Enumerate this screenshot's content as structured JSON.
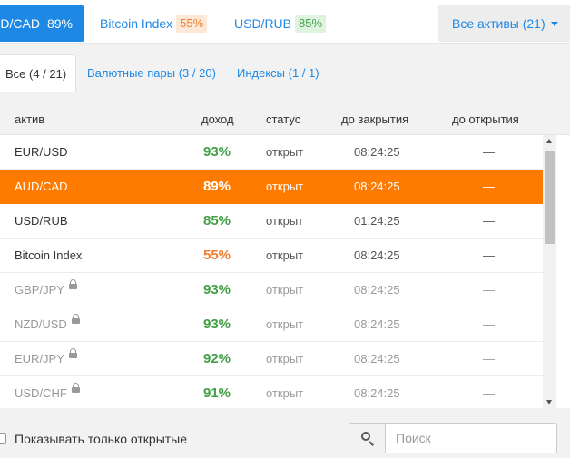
{
  "top_tabs": {
    "active": {
      "label": "AUD/CAD",
      "pct": "89%"
    },
    "items": [
      {
        "label": "Bitcoin Index",
        "pct": "55%"
      },
      {
        "label": "USD/RUB",
        "pct": "85%"
      }
    ],
    "all_assets_label": "Все активы (21)"
  },
  "filters": [
    {
      "label": "Все (4 / 21)"
    },
    {
      "label": "Валютные пары (3 / 20)"
    },
    {
      "label": "Индексы (1 / 1)"
    }
  ],
  "table": {
    "columns": [
      "актив",
      "доход",
      "статус",
      "до закрытия",
      "до открытия"
    ],
    "rows": [
      {
        "name": "EUR/USD",
        "pct": "93%",
        "status": "открыт",
        "close": "08:24:25",
        "open": "—"
      },
      {
        "name": "AUD/CAD",
        "pct": "89%",
        "status": "открыт",
        "close": "08:24:25",
        "open": "—"
      },
      {
        "name": "USD/RUB",
        "pct": "85%",
        "status": "открыт",
        "close": "01:24:25",
        "open": "—"
      },
      {
        "name": "Bitcoin Index",
        "pct": "55%",
        "status": "открыт",
        "close": "08:24:25",
        "open": "—"
      },
      {
        "name": "GBP/JPY",
        "pct": "93%",
        "status": "открыт",
        "close": "08:24:25",
        "open": "—"
      },
      {
        "name": "NZD/USD",
        "pct": "93%",
        "status": "открыт",
        "close": "08:24:25",
        "open": "—"
      },
      {
        "name": "EUR/JPY",
        "pct": "92%",
        "status": "открыт",
        "close": "08:24:25",
        "open": "—"
      },
      {
        "name": "USD/CHF",
        "pct": "91%",
        "status": "открыт",
        "close": "08:24:25",
        "open": "—"
      }
    ]
  },
  "footer": {
    "checkbox_label": "Показывать только открытые",
    "search_placeholder": "Поиск"
  },
  "colors": {
    "accent": "#1e88e5",
    "selected_row": "#ff7b00",
    "profit_green": "#43a047",
    "profit_orange": "#f08030"
  },
  "icons": [
    "chevron-down-icon",
    "lock-icon",
    "search-icon"
  ]
}
